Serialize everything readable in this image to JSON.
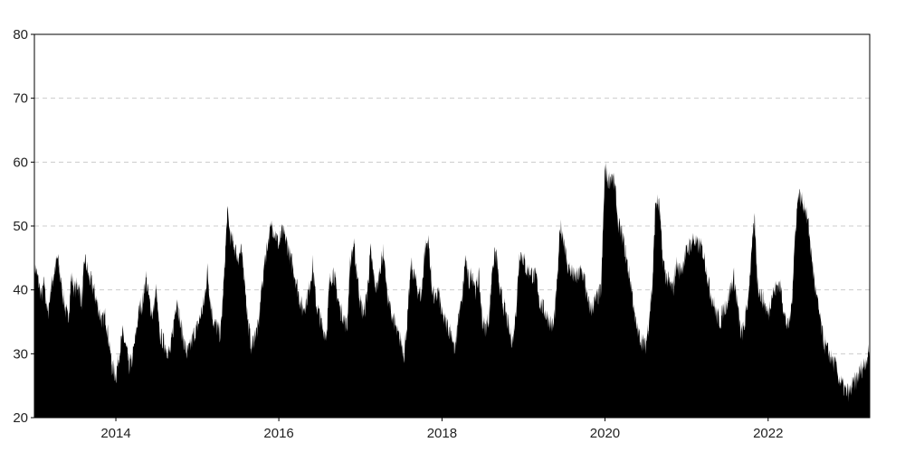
{
  "chart_data": {
    "type": "area",
    "title": "",
    "xlabel": "",
    "ylabel": "",
    "ylim": [
      20,
      80
    ],
    "xlim": [
      "2013-01-01",
      "2023-04-01"
    ],
    "grid": {
      "horizontal": true,
      "style": "dashed"
    },
    "colors": {
      "fill": "#000000",
      "grid": "#cccccc",
      "frame": "#000000"
    },
    "y_ticks": [
      "20",
      "30",
      "40",
      "50",
      "60",
      "70",
      "80"
    ],
    "x_ticks": [
      "2014",
      "2016",
      "2018",
      "2020",
      "2022"
    ],
    "series": [
      {
        "x": [
          "2013-01-01",
          "2013-01-15",
          "2013-02-01",
          "2013-02-15",
          "2013-03-01",
          "2013-03-15",
          "2013-04-01",
          "2013-04-15",
          "2013-05-01",
          "2013-05-15",
          "2013-06-01",
          "2013-06-15",
          "2013-07-01",
          "2013-07-15",
          "2013-08-01",
          "2013-08-15",
          "2013-09-01",
          "2013-09-15",
          "2013-10-01",
          "2013-10-15",
          "2013-11-01",
          "2013-11-15",
          "2013-12-01",
          "2013-12-15",
          "2014-01-01",
          "2014-01-15",
          "2014-02-01",
          "2014-02-15",
          "2014-03-01",
          "2014-03-15",
          "2014-04-01",
          "2014-04-15",
          "2014-05-01",
          "2014-05-15",
          "2014-06-01",
          "2014-06-15",
          "2014-07-01",
          "2014-07-15",
          "2014-08-01",
          "2014-08-15",
          "2014-09-01",
          "2014-09-15",
          "2014-10-01",
          "2014-10-15",
          "2014-11-01",
          "2014-11-15",
          "2014-12-01",
          "2014-12-15",
          "2015-01-01",
          "2015-01-15",
          "2015-02-01",
          "2015-02-15",
          "2015-03-01",
          "2015-03-15",
          "2015-04-01",
          "2015-04-15",
          "2015-05-01",
          "2015-05-15",
          "2015-06-01",
          "2015-06-15",
          "2015-07-01",
          "2015-07-15",
          "2015-08-01",
          "2015-08-15",
          "2015-09-01",
          "2015-09-15",
          "2015-10-01",
          "2015-10-15",
          "2015-11-01",
          "2015-11-15",
          "2015-12-01",
          "2015-12-15",
          "2016-01-01",
          "2016-01-15",
          "2016-02-01",
          "2016-02-15",
          "2016-03-01",
          "2016-03-15",
          "2016-04-01",
          "2016-04-15",
          "2016-05-01",
          "2016-05-15",
          "2016-06-01",
          "2016-06-15",
          "2016-07-01",
          "2016-07-15",
          "2016-08-01",
          "2016-08-15",
          "2016-09-01",
          "2016-09-15",
          "2016-10-01",
          "2016-10-15",
          "2016-11-01",
          "2016-11-15",
          "2016-12-01",
          "2016-12-15",
          "2017-01-01",
          "2017-01-15",
          "2017-02-01",
          "2017-02-15",
          "2017-03-01",
          "2017-03-15",
          "2017-04-01",
          "2017-04-15",
          "2017-05-01",
          "2017-05-15",
          "2017-06-01",
          "2017-06-15",
          "2017-07-01",
          "2017-07-15",
          "2017-08-01",
          "2017-08-15",
          "2017-09-01",
          "2017-09-15",
          "2017-10-01",
          "2017-10-15",
          "2017-11-01",
          "2017-11-15",
          "2017-12-01",
          "2017-12-15",
          "2018-01-01",
          "2018-01-15",
          "2018-02-01",
          "2018-02-15",
          "2018-03-01",
          "2018-03-15",
          "2018-04-01",
          "2018-04-15",
          "2018-05-01",
          "2018-05-15",
          "2018-06-01",
          "2018-06-15",
          "2018-07-01",
          "2018-07-15",
          "2018-08-01",
          "2018-08-15",
          "2018-09-01",
          "2018-09-15",
          "2018-10-01",
          "2018-10-15",
          "2018-11-01",
          "2018-11-15",
          "2018-12-01",
          "2018-12-15",
          "2019-01-01",
          "2019-01-15",
          "2019-02-01",
          "2019-02-15",
          "2019-03-01",
          "2019-03-15",
          "2019-04-01",
          "2019-04-15",
          "2019-05-01",
          "2019-05-15",
          "2019-06-01",
          "2019-06-15",
          "2019-07-01",
          "2019-07-15",
          "2019-08-01",
          "2019-08-15",
          "2019-09-01",
          "2019-09-15",
          "2019-10-01",
          "2019-10-15",
          "2019-11-01",
          "2019-11-15",
          "2019-12-01",
          "2019-12-15",
          "2020-01-01",
          "2020-01-15",
          "2020-02-01",
          "2020-02-15",
          "2020-03-01",
          "2020-03-15",
          "2020-04-01",
          "2020-04-15",
          "2020-05-01",
          "2020-05-15",
          "2020-06-01",
          "2020-06-15",
          "2020-07-01",
          "2020-07-15",
          "2020-08-01",
          "2020-08-15",
          "2020-09-01",
          "2020-09-15",
          "2020-10-01",
          "2020-10-15",
          "2020-11-01",
          "2020-11-15",
          "2020-12-01",
          "2020-12-15",
          "2021-01-01",
          "2021-01-15",
          "2021-02-01",
          "2021-02-15",
          "2021-03-01",
          "2021-03-15",
          "2021-04-01",
          "2021-04-15",
          "2021-05-01",
          "2021-05-15",
          "2021-06-01",
          "2021-06-15",
          "2021-07-01",
          "2021-07-15",
          "2021-08-01",
          "2021-08-15",
          "2021-09-01",
          "2021-09-15",
          "2021-10-01",
          "2021-10-15",
          "2021-11-01",
          "2021-11-15",
          "2021-12-01",
          "2021-12-15",
          "2022-01-01",
          "2022-01-15",
          "2022-02-01",
          "2022-02-15",
          "2022-03-01",
          "2022-03-15",
          "2022-04-01",
          "2022-04-15",
          "2022-05-01",
          "2022-05-15",
          "2022-06-01",
          "2022-06-15",
          "2022-07-01",
          "2022-07-15",
          "2022-08-01",
          "2022-08-15",
          "2022-09-01",
          "2022-09-15",
          "2022-10-01",
          "2022-10-15",
          "2022-11-01",
          "2022-11-15",
          "2022-12-01",
          "2022-12-15",
          "2023-01-01",
          "2023-01-15",
          "2023-02-01",
          "2023-02-15",
          "2023-03-01",
          "2023-03-15",
          "2023-04-01"
        ],
        "values": [
          44,
          42,
          39,
          41,
          36,
          40,
          43,
          45,
          41,
          38,
          35,
          42,
          40,
          41,
          38,
          45,
          42,
          41,
          39,
          37,
          35,
          36,
          32,
          28,
          26.5,
          30,
          33,
          31,
          28,
          29,
          33,
          37,
          38,
          42,
          38,
          36,
          40,
          33,
          32,
          31,
          30,
          34,
          39,
          35,
          32,
          30,
          31,
          33,
          34,
          36,
          38,
          43,
          38,
          35,
          34,
          33,
          42,
          52,
          48,
          47,
          45,
          46,
          42,
          35,
          31,
          33,
          34,
          40,
          45,
          48,
          50,
          49,
          47,
          49,
          48,
          46,
          44,
          42,
          39,
          37,
          38,
          40,
          44,
          38,
          36,
          34,
          33,
          41,
          43,
          40,
          37,
          36,
          34,
          44,
          47,
          43,
          38,
          36,
          40,
          46,
          42,
          40,
          44,
          46,
          39,
          37,
          35,
          33,
          32,
          30,
          36,
          44,
          42,
          40,
          39,
          46,
          48,
          41,
          38,
          40,
          36,
          35,
          34,
          33,
          30,
          36,
          38,
          45,
          41,
          43,
          40,
          42,
          35,
          34,
          36,
          44,
          46,
          40,
          38,
          36,
          33,
          32,
          38,
          46,
          45,
          43,
          43,
          42,
          42,
          38,
          37,
          36,
          35,
          34,
          41,
          50,
          48,
          44,
          43,
          42,
          42,
          43,
          42,
          38,
          37,
          38,
          39,
          40,
          59,
          57,
          58,
          56,
          50,
          49,
          46,
          43,
          40,
          35,
          33,
          32,
          31,
          35,
          41,
          54,
          53,
          45,
          42,
          41,
          40,
          44,
          43,
          44,
          46,
          47,
          48,
          47,
          47,
          46,
          43,
          40,
          38,
          36,
          35,
          37,
          38,
          40,
          42,
          38,
          33,
          34,
          38,
          44,
          51,
          41,
          39,
          38,
          36,
          39,
          40,
          41,
          40,
          36,
          34,
          37,
          48,
          55,
          54,
          53,
          50,
          45,
          40,
          37,
          33,
          31,
          30,
          29,
          28,
          26,
          25,
          24,
          24,
          25,
          26,
          27,
          28,
          29,
          30.5
        ]
      }
    ]
  }
}
